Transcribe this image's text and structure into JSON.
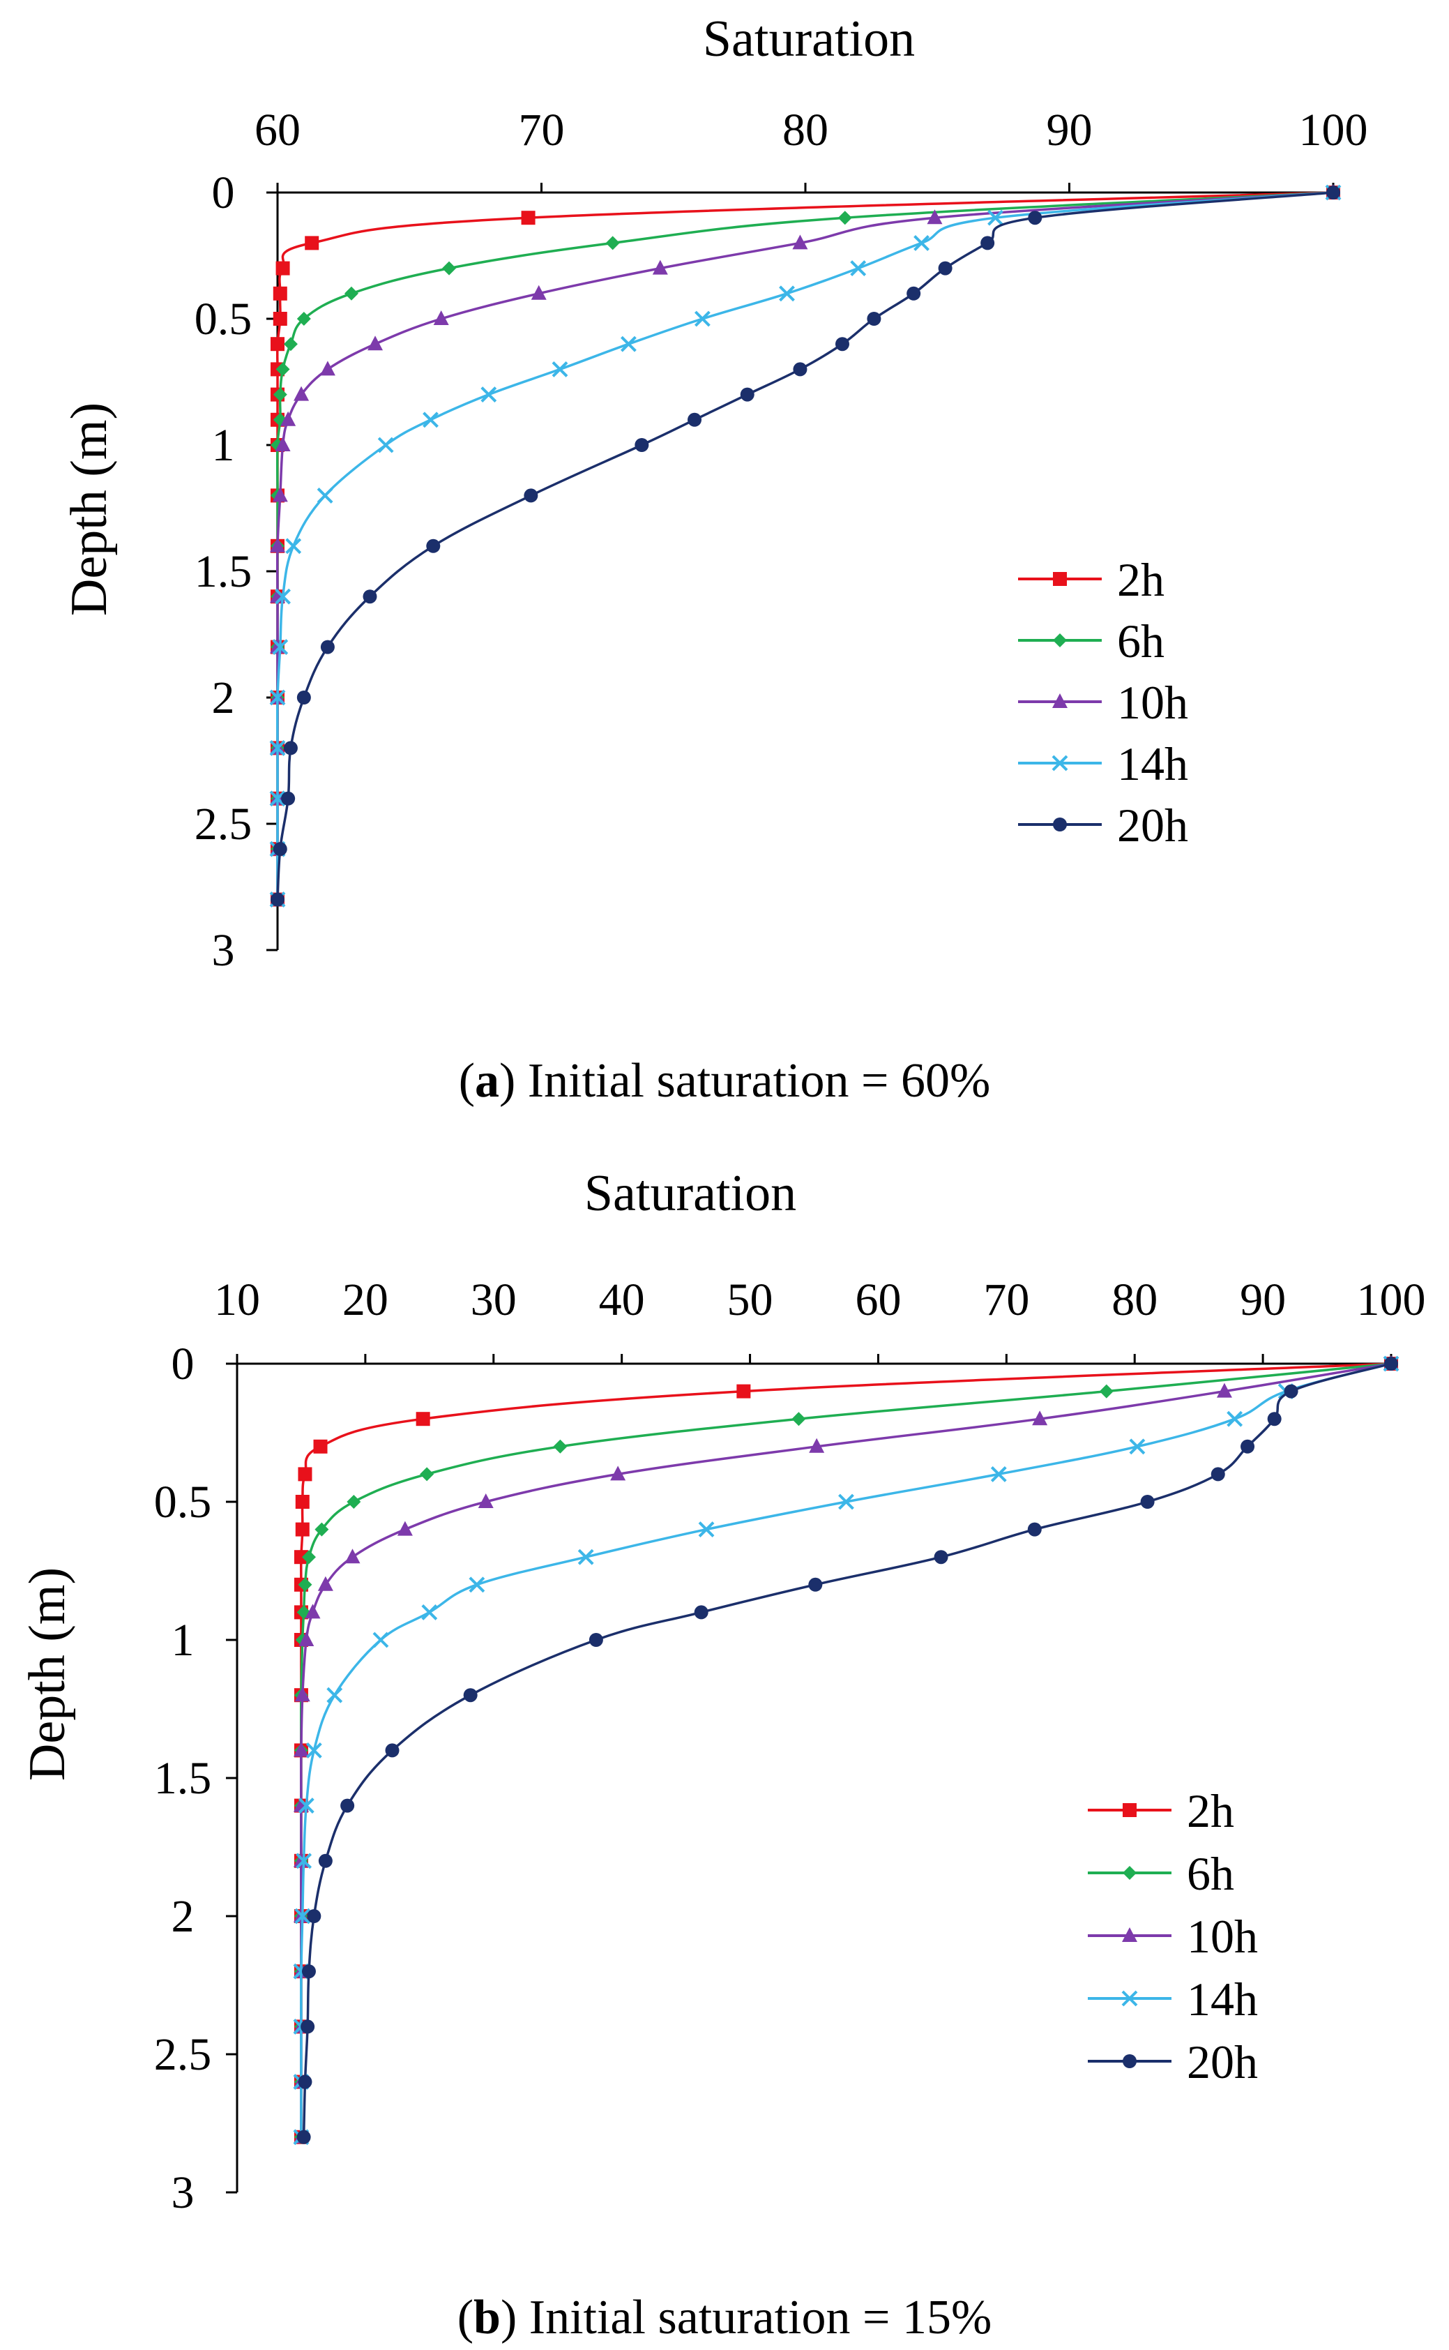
{
  "chart_data": [
    {
      "type": "line",
      "panel_letter": "a",
      "caption_text": ") Initial saturation = 60%",
      "xlabel": "Saturation",
      "ylabel": "Depth (m)",
      "xlim": [
        60,
        100
      ],
      "ylim": [
        0,
        3
      ],
      "xticks": [
        60,
        70,
        80,
        90,
        100
      ],
      "xtick_labels": [
        "60",
        "70",
        "80",
        "90",
        "100"
      ],
      "yticks": [
        0,
        0.5,
        1,
        1.5,
        2,
        2.5,
        3
      ],
      "ytick_labels": [
        "0",
        "0.5",
        "1",
        "1.5",
        "2",
        "2.5",
        "3"
      ],
      "legend_position": "right",
      "series": [
        {
          "name": "2h",
          "color": "#e8111b",
          "marker": "square",
          "depth": [
            0,
            0.1,
            0.2,
            0.3,
            0.4,
            0.5,
            0.6,
            0.7,
            0.8,
            0.9,
            1.0,
            1.2,
            1.4,
            1.6,
            1.8,
            2.0,
            2.2,
            2.4,
            2.6,
            2.8
          ],
          "values": [
            100,
            69.5,
            61.3,
            60.2,
            60.1,
            60.1,
            60,
            60,
            60,
            60,
            60,
            60,
            60,
            60,
            60,
            60,
            60,
            60,
            60,
            60
          ]
        },
        {
          "name": "6h",
          "color": "#1fae52",
          "marker": "diamond",
          "depth": [
            0,
            0.1,
            0.2,
            0.3,
            0.4,
            0.5,
            0.6,
            0.7,
            0.8,
            0.9,
            1.0,
            1.2,
            1.4,
            1.6,
            1.8,
            2.0,
            2.2,
            2.4,
            2.6,
            2.8
          ],
          "values": [
            100,
            81.5,
            72.7,
            66.5,
            62.8,
            61.0,
            60.5,
            60.2,
            60.1,
            60.1,
            60,
            60,
            60,
            60,
            60,
            60,
            60,
            60,
            60,
            60
          ]
        },
        {
          "name": "10h",
          "color": "#7d3aab",
          "marker": "triangle",
          "depth": [
            0,
            0.1,
            0.2,
            0.3,
            0.4,
            0.5,
            0.6,
            0.7,
            0.8,
            0.9,
            1.0,
            1.2,
            1.4,
            1.6,
            1.8,
            2.0,
            2.2,
            2.4,
            2.6,
            2.8
          ],
          "values": [
            100,
            84.9,
            79.8,
            74.5,
            69.9,
            66.2,
            63.7,
            61.9,
            60.9,
            60.4,
            60.2,
            60.1,
            60,
            60,
            60,
            60,
            60,
            60,
            60,
            60
          ]
        },
        {
          "name": "14h",
          "color": "#3cb6e8",
          "marker": "x",
          "depth": [
            0,
            0.1,
            0.2,
            0.3,
            0.4,
            0.5,
            0.6,
            0.7,
            0.8,
            0.9,
            1.0,
            1.2,
            1.4,
            1.6,
            1.8,
            2.0,
            2.2,
            2.4,
            2.6,
            2.8
          ],
          "values": [
            100,
            87.2,
            84.4,
            82.0,
            79.3,
            76.1,
            73.3,
            70.7,
            68.0,
            65.8,
            64.1,
            61.8,
            60.6,
            60.2,
            60.1,
            60,
            60,
            60,
            60,
            60
          ]
        },
        {
          "name": "20h",
          "color": "#1b2f6b",
          "marker": "circle",
          "depth": [
            0,
            0.1,
            0.2,
            0.3,
            0.4,
            0.5,
            0.6,
            0.7,
            0.8,
            0.9,
            1.0,
            1.2,
            1.4,
            1.6,
            1.8,
            2.0,
            2.2,
            2.4,
            2.6,
            2.8
          ],
          "values": [
            100,
            88.7,
            86.9,
            85.3,
            84.1,
            82.6,
            81.4,
            79.8,
            77.8,
            75.8,
            73.8,
            69.6,
            65.9,
            63.5,
            61.9,
            61.0,
            60.5,
            60.4,
            60.1,
            60
          ]
        }
      ]
    },
    {
      "type": "line",
      "panel_letter": "b",
      "caption_text": ") Initial saturation = 15%",
      "xlabel": "Saturation",
      "ylabel": "Depth (m)",
      "xlim": [
        10,
        100
      ],
      "ylim": [
        0,
        3
      ],
      "xticks": [
        10,
        20,
        30,
        40,
        50,
        60,
        70,
        80,
        90,
        100
      ],
      "xtick_labels": [
        "10",
        "20",
        "30",
        "40",
        "50",
        "60",
        "70",
        "80",
        "90",
        "100"
      ],
      "yticks": [
        0,
        0.5,
        1,
        1.5,
        2,
        2.5,
        3
      ],
      "ytick_labels": [
        "0",
        "0.5",
        "1",
        "1.5",
        "2",
        "2.5",
        "3"
      ],
      "legend_position": "bottom-right",
      "series": [
        {
          "name": "2h",
          "color": "#e8111b",
          "marker": "square",
          "depth": [
            0,
            0.1,
            0.2,
            0.3,
            0.4,
            0.5,
            0.6,
            0.7,
            0.8,
            0.9,
            1.0,
            1.2,
            1.4,
            1.6,
            1.8,
            2.0,
            2.2,
            2.4,
            2.6,
            2.8
          ],
          "values": [
            100,
            49.5,
            24.5,
            16.5,
            15.3,
            15.1,
            15.1,
            15,
            15,
            15,
            15,
            15,
            15,
            15,
            15,
            15,
            15,
            15,
            15,
            15
          ]
        },
        {
          "name": "6h",
          "color": "#1fae52",
          "marker": "diamond",
          "depth": [
            0,
            0.1,
            0.2,
            0.3,
            0.4,
            0.5,
            0.6,
            0.7,
            0.8,
            0.9,
            1.0,
            1.2,
            1.4,
            1.6,
            1.8,
            2.0,
            2.2,
            2.4,
            2.6,
            2.8
          ],
          "values": [
            100,
            77.8,
            53.8,
            35.2,
            24.8,
            19.1,
            16.6,
            15.6,
            15.3,
            15.2,
            15.1,
            15,
            15,
            15,
            15,
            15,
            15,
            15,
            15,
            15
          ]
        },
        {
          "name": "10h",
          "color": "#7d3aab",
          "marker": "triangle",
          "depth": [
            0,
            0.1,
            0.2,
            0.3,
            0.4,
            0.5,
            0.6,
            0.7,
            0.8,
            0.9,
            1.0,
            1.2,
            1.4,
            1.6,
            1.8,
            2.0,
            2.2,
            2.4,
            2.6,
            2.8
          ],
          "values": [
            100,
            87.0,
            72.6,
            55.2,
            39.7,
            29.4,
            23.1,
            19.0,
            16.9,
            15.9,
            15.4,
            15.1,
            15,
            15,
            15,
            15,
            15,
            15,
            15,
            15
          ]
        },
        {
          "name": "14h",
          "color": "#3cb6e8",
          "marker": "x",
          "depth": [
            0,
            0.1,
            0.2,
            0.3,
            0.4,
            0.5,
            0.6,
            0.7,
            0.8,
            0.9,
            1.0,
            1.2,
            1.4,
            1.6,
            1.8,
            2.0,
            2.2,
            2.4,
            2.6,
            2.8
          ],
          "values": [
            100,
            91.8,
            87.8,
            80.2,
            69.4,
            57.5,
            46.6,
            37.2,
            28.7,
            25.0,
            21.2,
            17.6,
            16.0,
            15.4,
            15.2,
            15.1,
            15,
            15,
            15,
            15
          ]
        },
        {
          "name": "20h",
          "color": "#1b2f6b",
          "marker": "circle",
          "depth": [
            0,
            0.1,
            0.2,
            0.3,
            0.4,
            0.5,
            0.6,
            0.7,
            0.8,
            0.9,
            1.0,
            1.2,
            1.4,
            1.6,
            1.8,
            2.0,
            2.2,
            2.4,
            2.6,
            2.8
          ],
          "values": [
            100,
            92.2,
            90.9,
            88.8,
            86.5,
            81.0,
            72.2,
            64.9,
            55.1,
            46.2,
            38.0,
            28.2,
            22.1,
            18.6,
            16.9,
            16.0,
            15.6,
            15.5,
            15.3,
            15.2
          ]
        }
      ]
    }
  ]
}
